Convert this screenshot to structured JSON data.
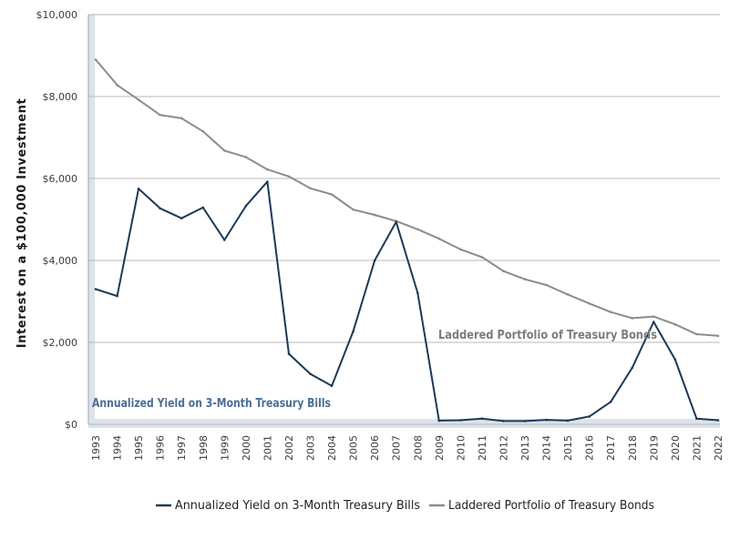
{
  "chart_data": {
    "type": "line",
    "title": "",
    "xlabel": "",
    "ylabel": "Interest on a $100,000 Investment",
    "ylim": [
      0,
      10000
    ],
    "yticks": [
      0,
      2000,
      4000,
      6000,
      8000,
      10000
    ],
    "ytick_labels": [
      "$0",
      "$2,000",
      "$4,000",
      "$6,000",
      "$8,000",
      "$10,000"
    ],
    "grid": "horizontal",
    "legend_position": "bottom",
    "x": [
      "1993",
      "1994",
      "1995",
      "1996",
      "1997",
      "1998",
      "1999",
      "2000",
      "2001",
      "2002",
      "2003",
      "2004",
      "2005",
      "2006",
      "2007",
      "2008",
      "2009",
      "2010",
      "2011",
      "2012",
      "2013",
      "2014",
      "2015",
      "2016",
      "2017",
      "2018",
      "2019",
      "2020",
      "2021",
      "2022"
    ],
    "series": [
      {
        "name": "Annualized Yield on 3-Month Treasury Bills",
        "color": "#1b3a57",
        "values": [
          3300,
          3130,
          5750,
          5270,
          5030,
          5290,
          4500,
          5330,
          5920,
          1720,
          1230,
          940,
          2270,
          4000,
          4940,
          3210,
          90,
          100,
          140,
          80,
          80,
          110,
          90,
          190,
          550,
          1380,
          2500,
          1580,
          140,
          100
        ]
      },
      {
        "name": "Laddered Portfolio of Treasury Bonds",
        "color": "#8c8c8c",
        "values": [
          8900,
          8280,
          7920,
          7550,
          7470,
          7150,
          6680,
          6520,
          6220,
          6050,
          5760,
          5610,
          5240,
          5110,
          4960,
          4760,
          4530,
          4270,
          4080,
          3740,
          3540,
          3400,
          3170,
          2950,
          2740,
          2590,
          2630,
          2440,
          2200,
          2160
        ]
      }
    ],
    "annotations": [
      {
        "text": "Laddered Portfolio of Treasury Bonds",
        "series": 1
      },
      {
        "text": "Annualized Yield on 3-Month Treasury Bills",
        "series": 0
      }
    ],
    "colors": {
      "plot_background": "#ffffff",
      "band": "#dde3ea",
      "gridline": "#b9b9b9",
      "bills_label": "#4b6f96",
      "bonds_label": "#7c7c7c"
    }
  }
}
